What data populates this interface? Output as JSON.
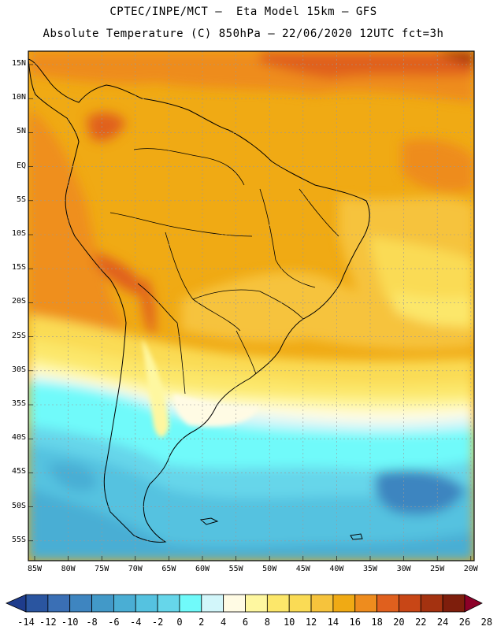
{
  "header": {
    "line1": "CPTEC/INPE/MCT —  Eta Model 15km — GFS",
    "line2": "Absolute Temperature (C) 850hPa — 22/06/2020 12UTC fct=3h"
  },
  "lat_labels": [
    "15N",
    "10N",
    "5N",
    "EQ",
    "5S",
    "10S",
    "15S",
    "20S",
    "25S",
    "30S",
    "35S",
    "40S",
    "45S",
    "50S",
    "55S"
  ],
  "lon_labels": [
    "85W",
    "80W",
    "75W",
    "70W",
    "65W",
    "60W",
    "55W",
    "50W",
    "45W",
    "40W",
    "35W",
    "30W",
    "25W",
    "20W"
  ],
  "colorbar": {
    "labels": [
      "-14",
      "-12",
      "-10",
      "-8",
      "-6",
      "-4",
      "-2",
      "0",
      "2",
      "4",
      "6",
      "8",
      "10",
      "12",
      "14",
      "16",
      "18",
      "20",
      "22",
      "24",
      "26",
      "28"
    ],
    "colors": [
      "#1e3c8c",
      "#2a55a0",
      "#3a6fb5",
      "#3e85c0",
      "#4299c8",
      "#4aaed4",
      "#55c2e0",
      "#66d6ea",
      "#70fafa",
      "#d2f6fa",
      "#fffbe4",
      "#fef7a0",
      "#fce76a",
      "#fadb55",
      "#f6c33c",
      "#f0aa14",
      "#ee8c1e",
      "#e0601e",
      "#c84616",
      "#a43210",
      "#7e1e0c",
      "#8c0028"
    ]
  }
}
